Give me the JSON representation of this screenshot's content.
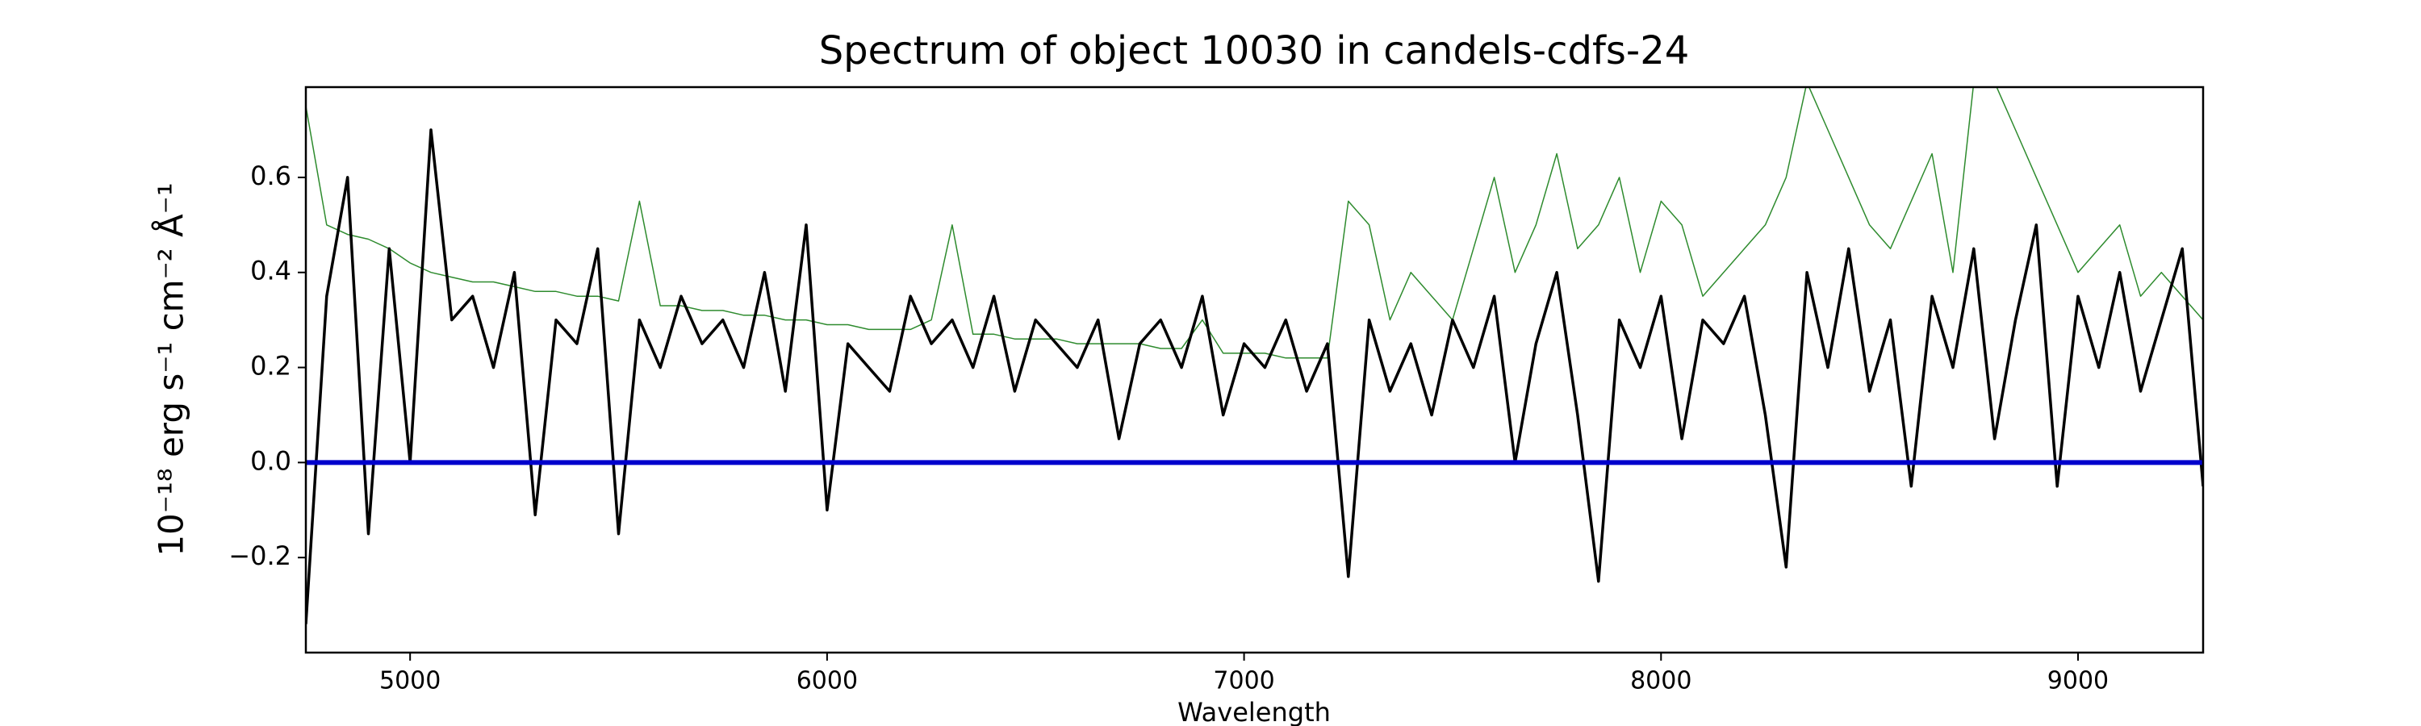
{
  "chart_data": {
    "type": "line",
    "title": "Spectrum of object 10030 in candels-cdfs-24",
    "x_label": "Wavelength",
    "y_label": "10⁻¹⁸ erg s⁻¹ cm⁻² Å⁻¹",
    "x": [
      4750,
      4800,
      4850,
      4900,
      4950,
      5000,
      5050,
      5100,
      5150,
      5200,
      5250,
      5300,
      5350,
      5400,
      5450,
      5500,
      5550,
      5600,
      5650,
      5700,
      5750,
      5800,
      5850,
      5900,
      5950,
      6000,
      6050,
      6100,
      6150,
      6200,
      6250,
      6300,
      6350,
      6400,
      6450,
      6500,
      6550,
      6600,
      6650,
      6700,
      6750,
      6800,
      6850,
      6900,
      6950,
      7000,
      7050,
      7100,
      7150,
      7200,
      7250,
      7300,
      7350,
      7400,
      7450,
      7500,
      7550,
      7600,
      7650,
      7700,
      7750,
      7800,
      7850,
      7900,
      7950,
      8000,
      8050,
      8100,
      8150,
      8200,
      8250,
      8300,
      8350,
      8400,
      8450,
      8500,
      8550,
      8600,
      8650,
      8700,
      8750,
      8800,
      8850,
      8900,
      8950,
      9000,
      9050,
      9100,
      9150,
      9200,
      9250,
      9300
    ],
    "series": [
      {
        "color": "#2e8b2e",
        "width": 1.5,
        "values": [
          0.75,
          0.5,
          0.48,
          0.47,
          0.45,
          0.42,
          0.4,
          0.39,
          0.38,
          0.38,
          0.37,
          0.36,
          0.36,
          0.35,
          0.35,
          0.34,
          0.55,
          0.33,
          0.33,
          0.32,
          0.32,
          0.31,
          0.31,
          0.3,
          0.3,
          0.29,
          0.29,
          0.28,
          0.28,
          0.28,
          0.3,
          0.5,
          0.27,
          0.27,
          0.26,
          0.26,
          0.26,
          0.25,
          0.25,
          0.25,
          0.25,
          0.24,
          0.24,
          0.3,
          0.23,
          0.23,
          0.23,
          0.22,
          0.22,
          0.22,
          0.55,
          0.5,
          0.3,
          0.4,
          0.35,
          0.3,
          0.45,
          0.6,
          0.4,
          0.5,
          0.65,
          0.45,
          0.5,
          0.6,
          0.4,
          0.55,
          0.5,
          0.35,
          0.4,
          0.45,
          0.5,
          0.6,
          0.8,
          0.7,
          0.6,
          0.5,
          0.45,
          0.55,
          0.65,
          0.4,
          0.8,
          0.8,
          0.7,
          0.6,
          0.5,
          0.4,
          0.45,
          0.5,
          0.35,
          0.4,
          0.35,
          0.3
        ]
      },
      {
        "color": "#000000",
        "width": 3.5,
        "values": [
          -0.34,
          0.35,
          0.6,
          -0.15,
          0.45,
          0.0,
          0.7,
          0.3,
          0.35,
          0.2,
          0.4,
          -0.11,
          0.3,
          0.25,
          0.45,
          -0.15,
          0.3,
          0.2,
          0.35,
          0.25,
          0.3,
          0.2,
          0.4,
          0.15,
          0.5,
          -0.1,
          0.25,
          0.2,
          0.15,
          0.35,
          0.25,
          0.3,
          0.2,
          0.35,
          0.15,
          0.3,
          0.25,
          0.2,
          0.3,
          0.05,
          0.25,
          0.3,
          0.2,
          0.35,
          0.1,
          0.25,
          0.2,
          0.3,
          0.15,
          0.25,
          -0.24,
          0.3,
          0.15,
          0.25,
          0.1,
          0.3,
          0.2,
          0.35,
          0.0,
          0.25,
          0.4,
          0.1,
          -0.25,
          0.3,
          0.2,
          0.35,
          0.05,
          0.3,
          0.25,
          0.35,
          0.1,
          -0.22,
          0.4,
          0.2,
          0.45,
          0.15,
          0.3,
          -0.05,
          0.35,
          0.2,
          0.45,
          0.05,
          0.3,
          0.5,
          -0.05,
          0.35,
          0.2,
          0.4,
          0.15,
          0.3,
          0.45,
          -0.05
        ]
      },
      {
        "color": "#0000cc",
        "width": 6,
        "x": [
          4750,
          9300
        ],
        "values": [
          0,
          0
        ]
      }
    ],
    "xlim": [
      4750,
      9300
    ],
    "ylim": [
      -0.4,
      0.79
    ],
    "xticks": [
      5000,
      6000,
      7000,
      8000,
      9000
    ],
    "yticks": [
      {
        "value": -0.2,
        "label": "−0.2"
      },
      {
        "value": 0,
        "label": "0.0"
      },
      0.2,
      0.4,
      0.6
    ]
  }
}
